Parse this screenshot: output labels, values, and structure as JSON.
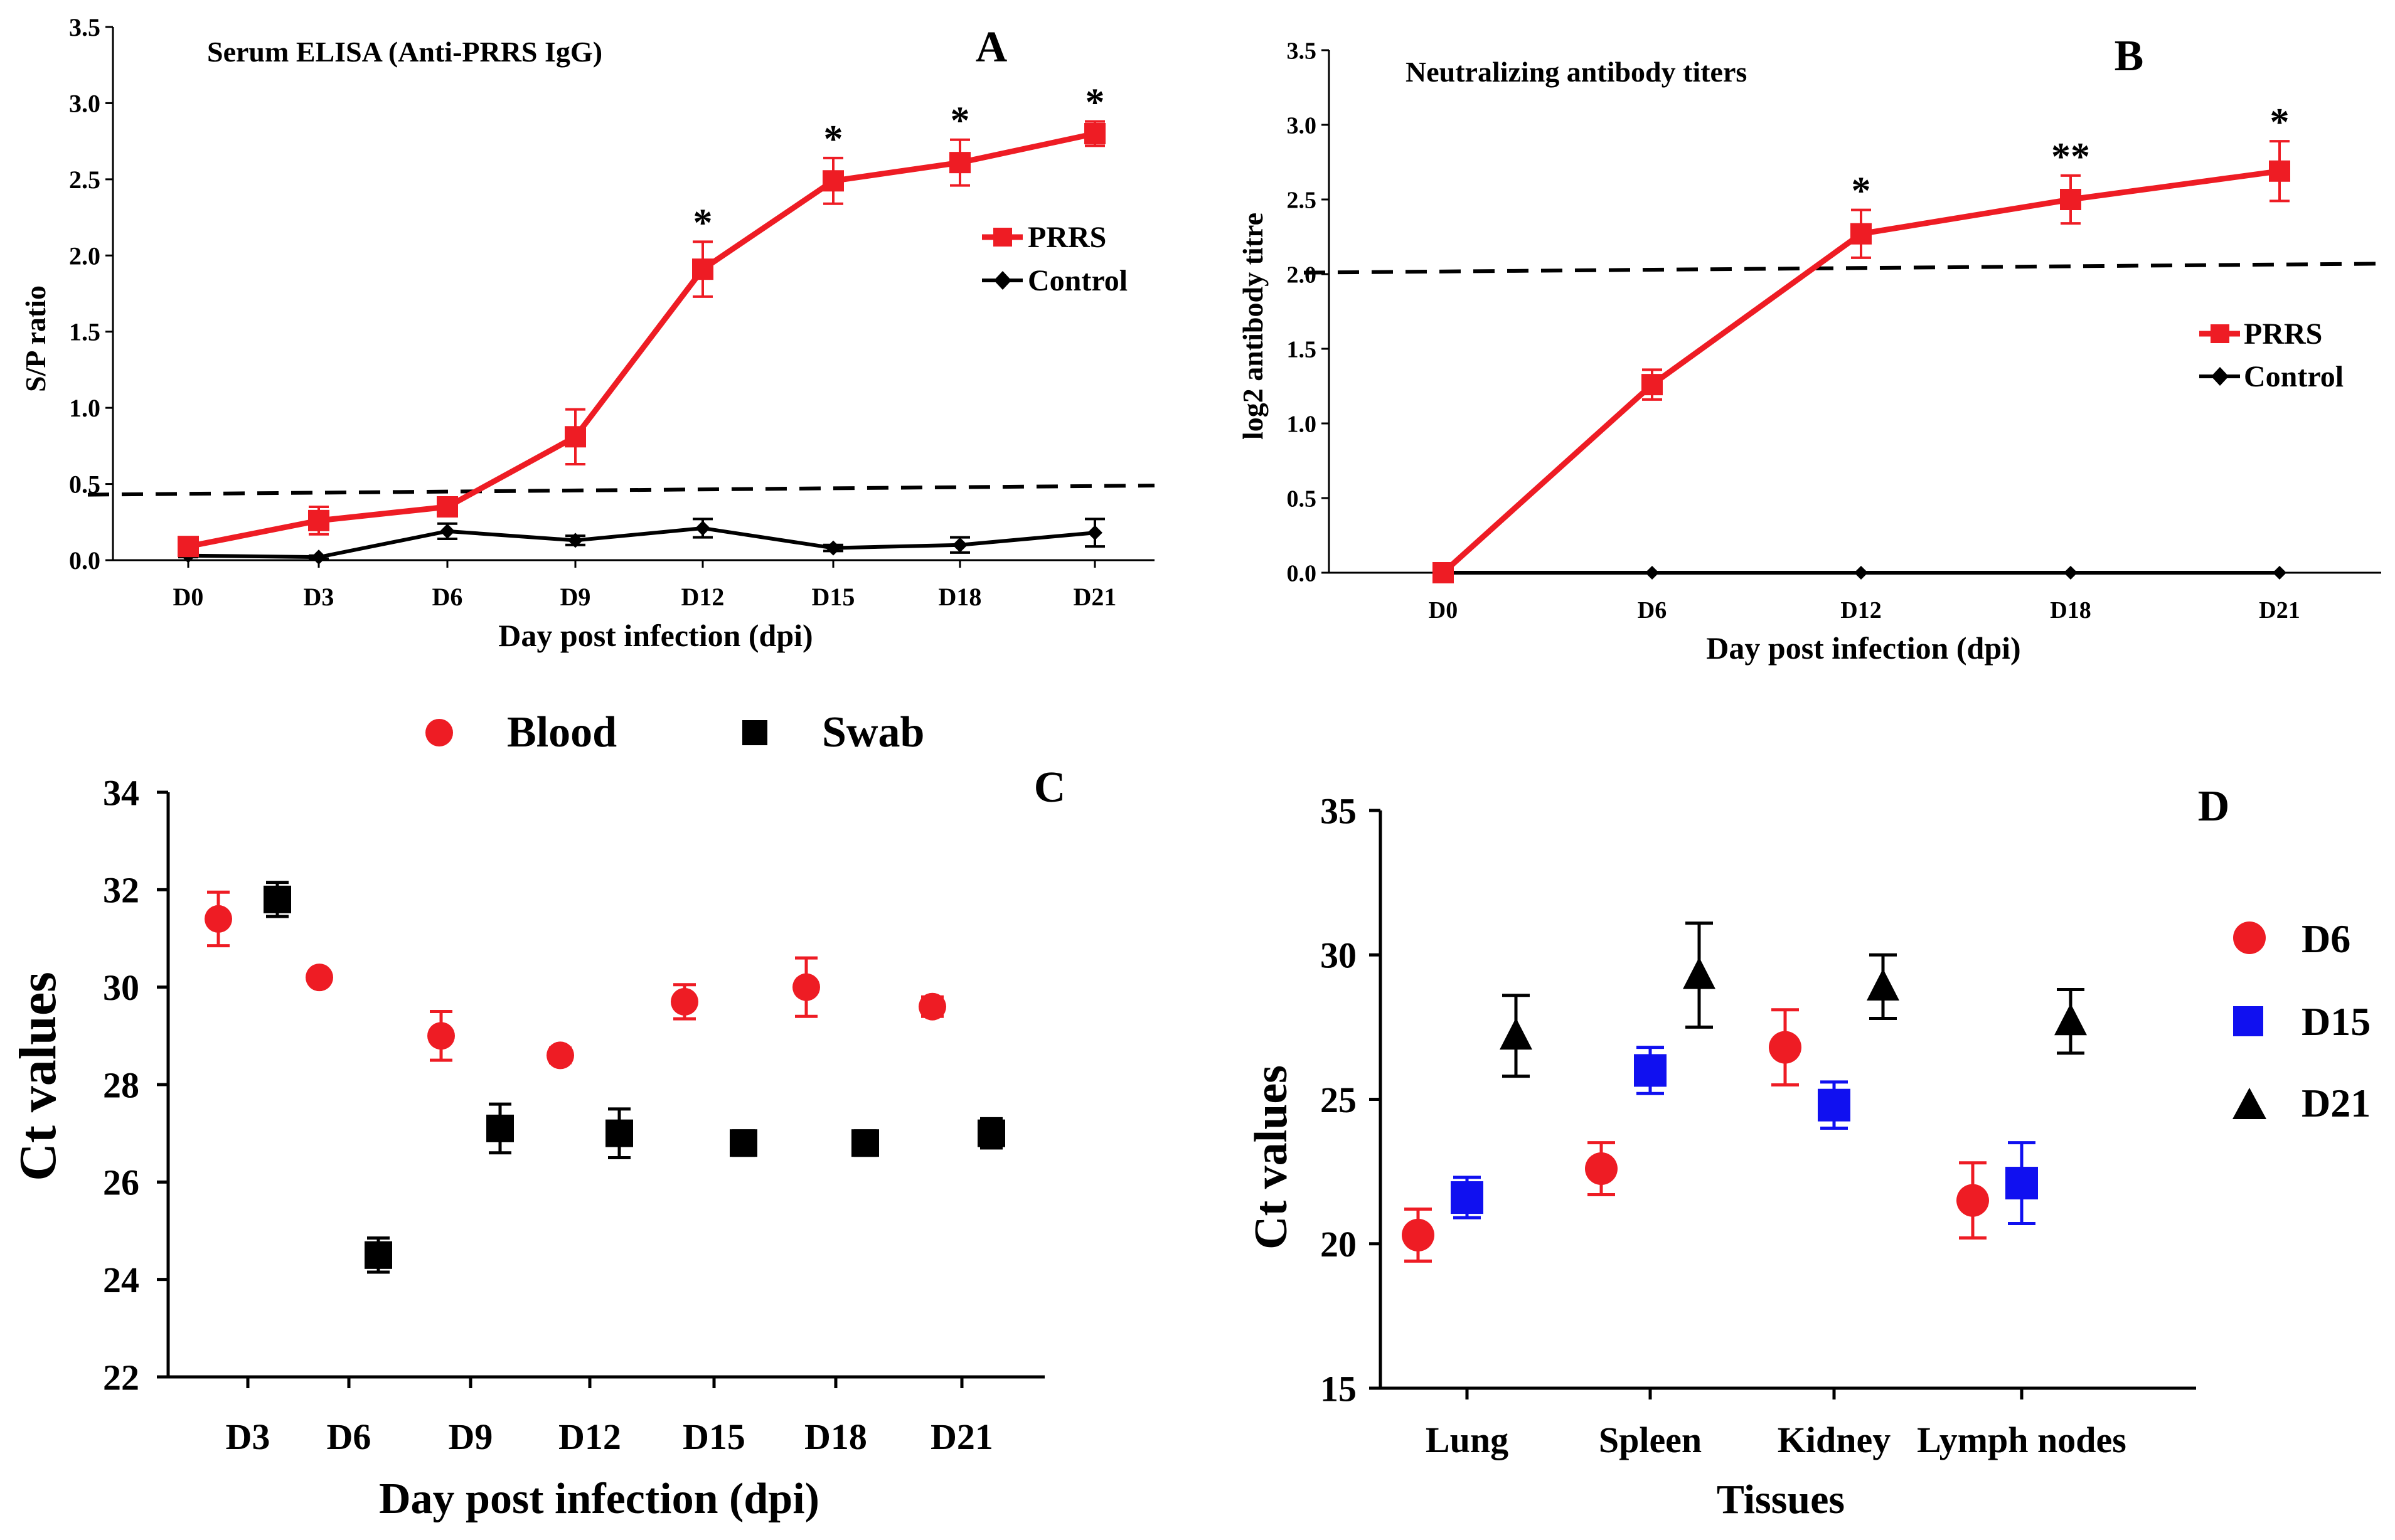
{
  "colors": {
    "red": "#ee1c24",
    "black": "#000000",
    "blue": "#1010f0"
  },
  "chart_data": [
    {
      "id": "A",
      "type": "line",
      "panel_label": "A",
      "title": "Serum  ELISA (Anti-PRRS IgG)",
      "xlabel": "Day post infection (dpi)",
      "ylabel": "S/P ratio",
      "categories": [
        "D0",
        "D3",
        "D6",
        "D9",
        "D12",
        "D15",
        "D18",
        "D21"
      ],
      "ylim": [
        0,
        3.5
      ],
      "yticks": [
        "0.0",
        "0.5",
        "1.0",
        "1.5",
        "2.0",
        "2.5",
        "3.0",
        "3.5"
      ],
      "series": [
        {
          "name": "PRRS",
          "color": "#ee1c24",
          "marker": "square",
          "values": [
            0.09,
            0.26,
            0.35,
            0.81,
            1.91,
            2.49,
            2.61,
            2.8
          ],
          "errors": [
            0.04,
            0.09,
            0.06,
            0.18,
            0.18,
            0.15,
            0.15,
            0.08
          ],
          "annotations": [
            "",
            "",
            "",
            "",
            "*",
            "*",
            "*",
            "*"
          ]
        },
        {
          "name": "Control",
          "color": "#000000",
          "marker": "diamond",
          "values": [
            0.03,
            0.02,
            0.19,
            0.13,
            0.21,
            0.08,
            0.1,
            0.18
          ],
          "errors": [
            0.01,
            0.01,
            0.05,
            0.03,
            0.06,
            0.02,
            0.05,
            0.09
          ]
        }
      ],
      "threshold_line": {
        "from": 0.43,
        "to": 0.49
      },
      "legend": "right"
    },
    {
      "id": "B",
      "type": "line",
      "panel_label": "B",
      "title": "Neutralizing antibody titers",
      "xlabel": "Day post infection (dpi)",
      "ylabel": "log2 antibody titre",
      "categories": [
        "D0",
        "D6",
        "D12",
        "D18",
        "D21"
      ],
      "ylim": [
        0,
        3.5
      ],
      "yticks": [
        "0.0",
        "0.5",
        "1.0",
        "1.5",
        "2.0",
        "2.5",
        "3.0",
        "3.5"
      ],
      "series": [
        {
          "name": "PRRS",
          "color": "#ee1c24",
          "marker": "square",
          "values": [
            0.0,
            1.26,
            2.27,
            2.5,
            2.69
          ],
          "errors": [
            0,
            0.1,
            0.16,
            0.16,
            0.2
          ],
          "annotations": [
            "",
            "",
            "*",
            "**",
            "*"
          ]
        },
        {
          "name": "Control",
          "color": "#000000",
          "marker": "diamond",
          "values": [
            0,
            0,
            0,
            0,
            0
          ],
          "errors": [
            0,
            0,
            0,
            0,
            0
          ]
        }
      ],
      "threshold_line": {
        "from": 2.01,
        "to": 2.07
      },
      "legend": "right"
    },
    {
      "id": "C",
      "type": "scatter",
      "panel_label": "C",
      "xlabel": "Day post infection (dpi)",
      "ylabel": "Ct values",
      "categories": [
        "D3",
        "D6",
        "D9",
        "D12",
        "D15",
        "D18",
        "D21"
      ],
      "ylim": [
        22,
        34
      ],
      "yticks": [
        "22",
        "24",
        "26",
        "28",
        "30",
        "32",
        "34"
      ],
      "series": [
        {
          "name": "Blood",
          "color": "#ee1c24",
          "marker": "circle",
          "values": [
            31.4,
            30.2,
            29.0,
            28.6,
            29.7,
            30.0,
            29.6
          ],
          "errors": [
            0.55,
            0,
            0.5,
            0.15,
            0.35,
            0.6,
            0.2
          ]
        },
        {
          "name": "Swab",
          "color": "#000000",
          "marker": "square",
          "values": [
            31.8,
            24.5,
            27.1,
            27.0,
            26.8,
            26.8,
            27.0
          ],
          "errors": [
            0.35,
            0.35,
            0.5,
            0.5,
            0.25,
            0.25,
            0.3
          ]
        }
      ],
      "legend": "top"
    },
    {
      "id": "D",
      "type": "scatter",
      "panel_label": "D",
      "xlabel": "Tissues",
      "ylabel": "Ct values",
      "categories": [
        "Lung",
        "Spleen",
        "Kidney",
        "Lymph nodes"
      ],
      "ylim": [
        15,
        35
      ],
      "yticks": [
        "15",
        "20",
        "25",
        "30",
        "35"
      ],
      "series": [
        {
          "name": "D6",
          "color": "#ee1c24",
          "marker": "circle",
          "values": [
            20.3,
            22.6,
            26.8,
            21.5
          ],
          "errors": [
            0.9,
            0.9,
            1.3,
            1.3
          ]
        },
        {
          "name": "D15",
          "color": "#1010f0",
          "marker": "square",
          "values": [
            21.6,
            26.0,
            24.8,
            22.1
          ],
          "errors": [
            0.7,
            0.8,
            0.8,
            1.4
          ]
        },
        {
          "name": "D21",
          "color": "#000000",
          "marker": "triangle",
          "values": [
            27.2,
            29.3,
            28.9,
            27.7
          ],
          "errors": [
            1.4,
            1.8,
            1.1,
            1.1
          ]
        }
      ],
      "legend": "right"
    }
  ]
}
